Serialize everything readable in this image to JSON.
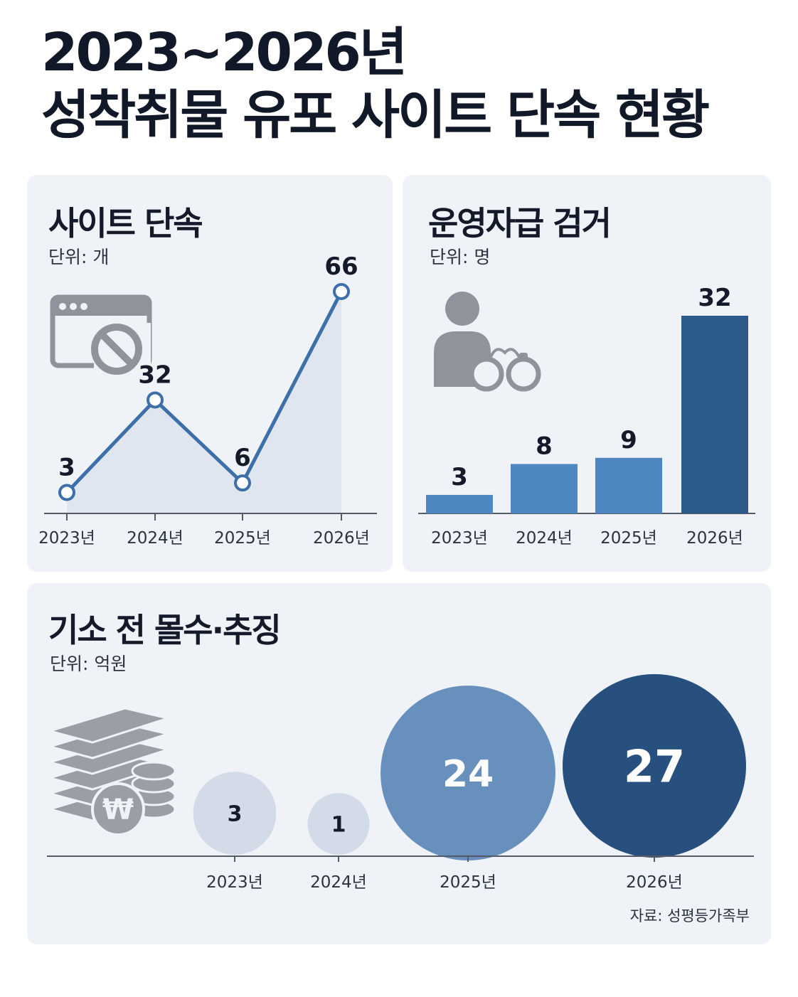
{
  "title": {
    "line1": "2023~2026년",
    "line2": "성착취물 유포 사이트 단속 현황"
  },
  "colors": {
    "line": "#3d6fa8",
    "bar_light": "#4f87c2",
    "bar_dark": "#2c5a8a",
    "bubble_light": "#d2dbe7",
    "bubble_mid": "#6890bd",
    "bubble_dark": "#27507e",
    "icon": "#8f949c"
  },
  "panels": {
    "line": {
      "title": "사이트 단속",
      "unit": "단위: 개",
      "icon": "blocked-website-icon"
    },
    "bar": {
      "title": "운영자급 검거",
      "unit": "단위: 명",
      "icon": "arrested-person-handcuffs-icon"
    },
    "bubble": {
      "title": "기소 전 몰수·추징",
      "unit": "단위: 억원",
      "icon": "money-stack-won-icon"
    }
  },
  "source": "자료: 성평등가족부",
  "chart_data": [
    {
      "type": "line",
      "title": "사이트 단속",
      "unit": "단위: 개",
      "categories": [
        "2023년",
        "2024년",
        "2025년",
        "2026년"
      ],
      "values": [
        3,
        32,
        6,
        66
      ],
      "ylim": [
        0,
        70
      ],
      "grid": false,
      "legend": "none"
    },
    {
      "type": "bar",
      "title": "운영자급 검거",
      "unit": "단위: 명",
      "categories": [
        "2023년",
        "2024년",
        "2025년",
        "2026년"
      ],
      "values": [
        3,
        8,
        9,
        32
      ],
      "ylim": [
        0,
        35
      ],
      "grid": false,
      "legend": "none"
    },
    {
      "type": "scatter",
      "title": "기소 전 몰수·추징",
      "unit": "단위: 억원",
      "categories": [
        "2023년",
        "2024년",
        "2025년",
        "2026년"
      ],
      "values": [
        3,
        1,
        24,
        27
      ],
      "grid": false,
      "legend": "none"
    }
  ]
}
